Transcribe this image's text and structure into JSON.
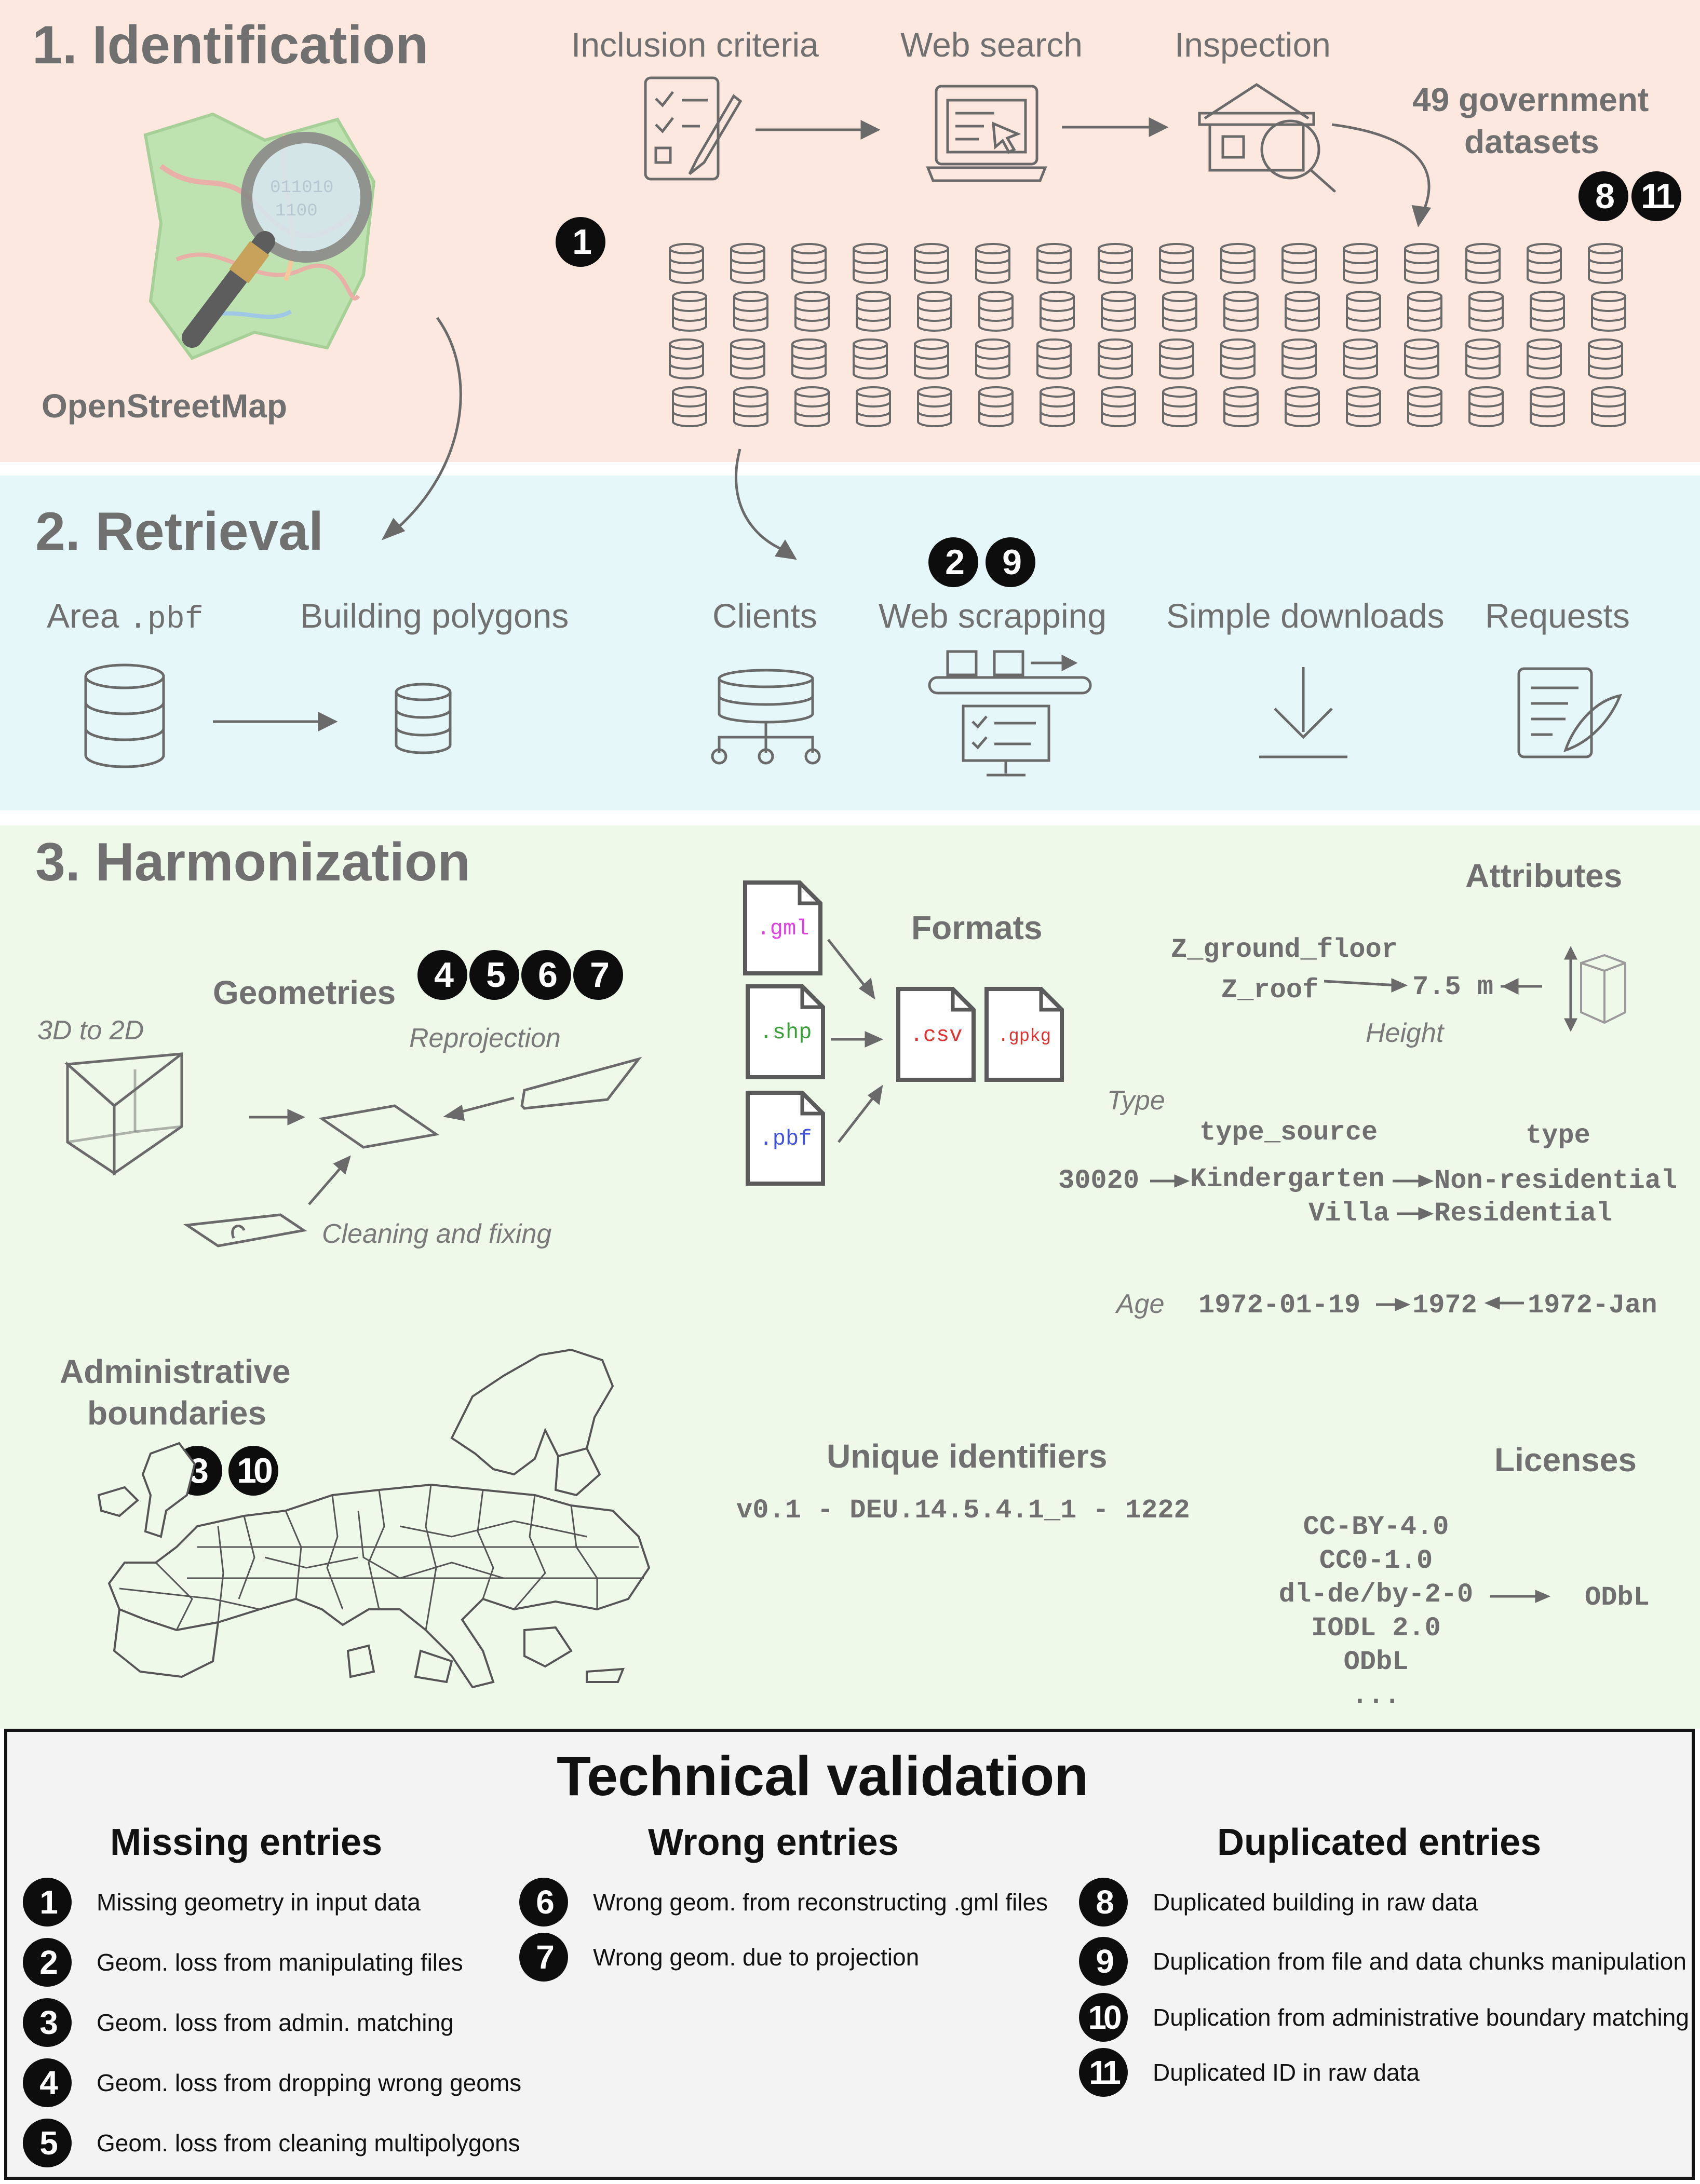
{
  "section1": {
    "title": "1. Identification",
    "osm_label": "OpenStreetMap",
    "steps": [
      "Inclusion criteria",
      "Web search",
      "Inspection"
    ],
    "datasets_label_1": "49 government",
    "datasets_label_2": "datasets",
    "badge_1": "1",
    "badge_8": "8",
    "badge_11": "11"
  },
  "section2": {
    "title": "2. Retrieval",
    "area_label": "Area ",
    "area_ext": ".pbf",
    "building_polygons": "Building polygons",
    "clients": "Clients",
    "web_scrapping": "Web scrapping",
    "simple_downloads": "Simple downloads",
    "requests": "Requests",
    "badge_2": "2",
    "badge_9": "9"
  },
  "section3": {
    "title": "3. Harmonization",
    "geometries": "Geometries",
    "badges_geom": [
      "4",
      "5",
      "6",
      "7"
    ],
    "geom_3d2d": "3D to 2D",
    "reprojection": "Reprojection",
    "cleaning": "Cleaning and fixing",
    "formats": "Formats",
    "files": {
      "gml": ".gml",
      "shp": ".shp",
      "pbf": ".pbf",
      "csv": ".csv",
      "gpkg": ".gpkg"
    },
    "file_colors": {
      "gml": "#e040e0",
      "shp": "#3aa03a",
      "pbf": "#4050e0",
      "csv": "#e03030",
      "gpkg": "#e03030"
    },
    "attributes": "Attributes",
    "z_ground": "Z_ground_floor",
    "z_roof": "Z_roof",
    "height_value": "7.5 m",
    "height": "Height",
    "type_label": "Type",
    "type_source": "type_source",
    "type": "type",
    "code": "30020",
    "kindergarten": "Kindergarten",
    "non_residential": "Non-residential",
    "villa": "Villa",
    "residential": "Residential",
    "age_label": "Age",
    "age_in": "1972-01-19",
    "age_out": "1972",
    "age_in2": "1972-Jan",
    "admin_1": "Administrative",
    "admin_2": "boundaries",
    "badges_admin": [
      "3",
      "10"
    ],
    "unique_ids": "Unique identifiers",
    "id_example": "v0.1 - DEU.14.5.4.1_1 - 1222",
    "licenses": "Licenses",
    "license_list": [
      "CC-BY-4.0",
      "CC0-1.0",
      "dl-de/by-2-0",
      "IODL 2.0",
      "ODbL",
      "..."
    ],
    "license_out": "ODbL"
  },
  "validation": {
    "title": "Technical validation",
    "missing": {
      "heading": "Missing entries",
      "items": [
        {
          "n": "1",
          "text": "Missing geometry in input data"
        },
        {
          "n": "2",
          "text": "Geom. loss from manipulating files"
        },
        {
          "n": "3",
          "text": "Geom. loss from admin. matching"
        },
        {
          "n": "4",
          "text": "Geom. loss from dropping wrong geoms"
        },
        {
          "n": "5",
          "text": "Geom. loss from cleaning multipolygons"
        }
      ]
    },
    "wrong": {
      "heading": "Wrong entries",
      "items": [
        {
          "n": "6",
          "text": "Wrong geom. from reconstructing .gml files"
        },
        {
          "n": "7",
          "text": "Wrong geom. due to projection"
        }
      ]
    },
    "duplicated": {
      "heading": "Duplicated entries",
      "items": [
        {
          "n": "8",
          "text": "Duplicated building in raw data"
        },
        {
          "n": "9",
          "text": "Duplication from file and data chunks manipulation"
        },
        {
          "n": "10",
          "text": "Duplication from administrative boundary matching"
        },
        {
          "n": "11",
          "text": "Duplicated ID in raw data"
        }
      ]
    }
  }
}
